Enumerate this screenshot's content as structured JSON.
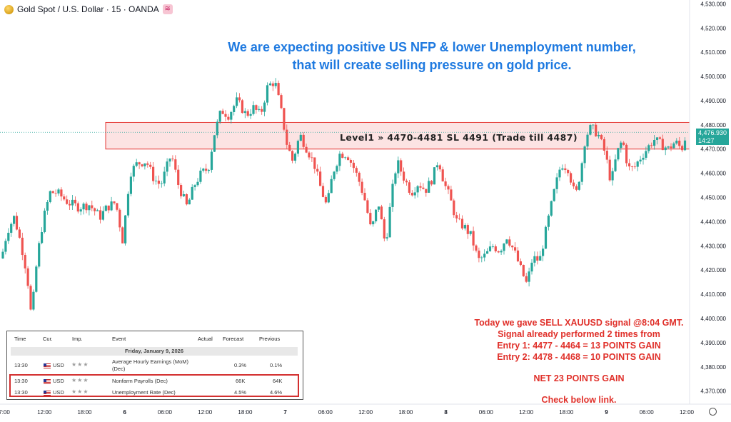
{
  "symbol": {
    "title": "Gold Spot / U.S. Dollar · 15 · OANDA",
    "icon": "gold-coin-icon",
    "badge_icon": "replay-icon"
  },
  "headline": [
    "We are expecting positive US NFP & lower Unemployment number,",
    "that will create selling pressure on gold price."
  ],
  "zone_label": "Level1 » 4470-4481 SL 4491 (Trade till 4487)",
  "signal_text": [
    "Today we gave SELL XAUUSD signal @8:04 GMT.",
    "Signal already performed 2 times from",
    "Entry 1: 4477 - 4464 = 13 POINTS GAIN",
    "Entry 2: 4478 - 4468 = 10 POINTS GAIN"
  ],
  "net_gain": "NET 23 POINTS GAIN",
  "link_text": "Check below link.",
  "current_price": {
    "price": "4,476.930",
    "countdown": "14:27"
  },
  "colors": {
    "up": "#26a69a",
    "down": "#ef5350",
    "zone_fill": "#fbdada",
    "zone_border": "#e53935",
    "headline": "#1f7ae0",
    "signal": "#e0302a"
  },
  "calendar": {
    "headers": [
      "Time",
      "Cur.",
      "Imp.",
      "Event",
      "Actual",
      "Forecast",
      "Previous"
    ],
    "date": "Friday, January 9, 2026",
    "rows": [
      {
        "time": "13:30",
        "currency": "USD",
        "event": "Average Hourly Earnings (MoM)",
        "event2": "(Dec)",
        "actual": "",
        "forecast": "0.3%",
        "previous": "0.1%"
      },
      {
        "time": "13:30",
        "currency": "USD",
        "event": "Nonfarm Payrolls (Dec)",
        "event2": "",
        "actual": "",
        "forecast": "66K",
        "previous": "64K"
      },
      {
        "time": "13:30",
        "currency": "USD",
        "event": "Unemployment Rate (Dec)",
        "event2": "",
        "actual": "",
        "forecast": "4.5%",
        "previous": "4.6%"
      }
    ]
  },
  "chart_data": {
    "type": "candlestick",
    "y_axis": {
      "ylim": [
        4364,
        4531
      ],
      "ticks": [
        4370,
        4380,
        4390,
        4400,
        4410,
        4420,
        4430,
        4440,
        4450,
        4460,
        4470,
        4480,
        4490,
        4500,
        4510,
        4520,
        4530
      ],
      "tick_labels": [
        "4,370.000",
        "4,380.000",
        "4,390.000",
        "4,400.000",
        "4,410.000",
        "4,420.000",
        "4,430.000",
        "4,440.000",
        "4,450.000",
        "4,460.000",
        "4,470.000",
        "4,480.000",
        "4,490.000",
        "4,500.000",
        "4,510.000",
        "4,520.000",
        "4,530.000"
      ]
    },
    "x_axis": {
      "tick_labels": [
        "7:00",
        "12:00",
        "18:00",
        "6",
        "06:00",
        "12:00",
        "18:00",
        "7",
        "06:00",
        "12:00",
        "18:00",
        "8",
        "06:00",
        "12:00",
        "18:00",
        "9",
        "06:00",
        "12:00"
      ],
      "bold_labels": [
        "6",
        "7",
        "8",
        "9"
      ]
    },
    "zone": {
      "low": 4470,
      "high": 4481
    },
    "last_price": 4476.93,
    "price_path": [
      [
        0,
        4422
      ],
      [
        10,
        4436
      ],
      [
        20,
        4442
      ],
      [
        30,
        4430
      ],
      [
        38,
        4418
      ],
      [
        44,
        4400
      ],
      [
        52,
        4425
      ],
      [
        60,
        4440
      ],
      [
        70,
        4452
      ],
      [
        80,
        4452
      ],
      [
        95,
        4448
      ],
      [
        110,
        4446
      ],
      [
        125,
        4447
      ],
      [
        140,
        4442
      ],
      [
        150,
        4446
      ],
      [
        162,
        4448
      ],
      [
        172,
        4432
      ],
      [
        182,
        4460
      ],
      [
        192,
        4464
      ],
      [
        205,
        4465
      ],
      [
        215,
        4458
      ],
      [
        225,
        4455
      ],
      [
        240,
        4468
      ],
      [
        250,
        4455
      ],
      [
        262,
        4446
      ],
      [
        272,
        4455
      ],
      [
        282,
        4460
      ],
      [
        292,
        4462
      ],
      [
        300,
        4476
      ],
      [
        310,
        4486
      ],
      [
        320,
        4484
      ],
      [
        332,
        4490
      ],
      [
        345,
        4484
      ],
      [
        355,
        4487
      ],
      [
        365,
        4484
      ],
      [
        375,
        4496
      ],
      [
        385,
        4498
      ],
      [
        395,
        4484
      ],
      [
        402,
        4472
      ],
      [
        410,
        4465
      ],
      [
        420,
        4476
      ],
      [
        430,
        4470
      ],
      [
        440,
        4464
      ],
      [
        448,
        4455
      ],
      [
        458,
        4446
      ],
      [
        466,
        4460
      ],
      [
        476,
        4468
      ],
      [
        486,
        4468
      ],
      [
        496,
        4462
      ],
      [
        504,
        4456
      ],
      [
        512,
        4448
      ],
      [
        520,
        4436
      ],
      [
        530,
        4448
      ],
      [
        540,
        4430
      ],
      [
        548,
        4450
      ],
      [
        556,
        4465
      ],
      [
        566,
        4458
      ],
      [
        576,
        4452
      ],
      [
        586,
        4456
      ],
      [
        596,
        4453
      ],
      [
        606,
        4458
      ],
      [
        614,
        4466
      ],
      [
        622,
        4456
      ],
      [
        630,
        4450
      ],
      [
        640,
        4440
      ],
      [
        650,
        4438
      ],
      [
        660,
        4434
      ],
      [
        670,
        4424
      ],
      [
        680,
        4426
      ],
      [
        690,
        4430
      ],
      [
        700,
        4428
      ],
      [
        710,
        4434
      ],
      [
        720,
        4428
      ],
      [
        730,
        4420
      ],
      [
        738,
        4414
      ],
      [
        746,
        4425
      ],
      [
        756,
        4424
      ],
      [
        766,
        4438
      ],
      [
        776,
        4452
      ],
      [
        786,
        4464
      ],
      [
        796,
        4462
      ],
      [
        806,
        4450
      ],
      [
        814,
        4462
      ],
      [
        820,
        4475
      ],
      [
        828,
        4479
      ],
      [
        838,
        4476
      ],
      [
        848,
        4468
      ],
      [
        856,
        4456
      ],
      [
        864,
        4468
      ],
      [
        872,
        4474
      ],
      [
        880,
        4462
      ],
      [
        888,
        4462
      ],
      [
        896,
        4466
      ],
      [
        906,
        4470
      ],
      [
        916,
        4474
      ],
      [
        926,
        4472
      ],
      [
        936,
        4470
      ],
      [
        946,
        4473
      ],
      [
        955,
        4470
      ],
      [
        962,
        4477
      ]
    ]
  }
}
